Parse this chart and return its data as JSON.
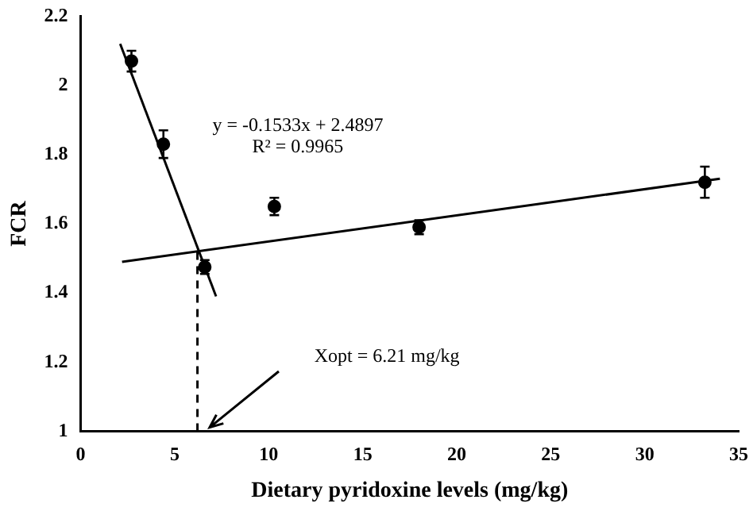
{
  "chart_data": {
    "type": "scatter",
    "xlabel": "Dietary pyridoxine levels (mg/kg)",
    "ylabel": "FCR",
    "x": [
      2.7,
      4.4,
      6.6,
      10.3,
      18,
      33.2
    ],
    "series": [
      {
        "color": "#000000",
        "values": [
          2.07,
          1.83,
          1.475,
          1.65,
          1.59,
          1.72
        ],
        "errors": [
          0.03,
          0.04,
          0.02,
          0.025,
          0.02,
          0.045
        ],
        "marker": "circle"
      },
      {
        "type": "line",
        "color": "#000000",
        "x": [
          2.1,
          7.2
        ],
        "values": [
          2.12,
          1.39
        ],
        "marker": "none",
        "line_style": "solid"
      },
      {
        "type": "line",
        "color": "#000000",
        "x": [
          2.2,
          34
        ],
        "values": [
          1.49,
          1.73
        ],
        "marker": "none",
        "line_style": "solid"
      },
      {
        "type": "line",
        "color": "#000000",
        "x": [
          6.21,
          6.21
        ],
        "values": [
          1,
          1.52
        ],
        "marker": "none",
        "line_style": "dashed"
      }
    ],
    "xlim": [
      0,
      35
    ],
    "xticks": [
      0,
      5,
      10,
      15,
      20,
      25,
      30,
      35
    ],
    "ylim": [
      1,
      2.2
    ],
    "yticks": [
      1,
      1.2,
      1.4,
      1.6,
      1.8,
      2,
      2.2
    ],
    "grid": false,
    "legend": false,
    "annotations": [
      "y = -0.1533x + 2.4897",
      "R² = 0.9965",
      "Xopt = 6.21 mg/kg"
    ]
  }
}
